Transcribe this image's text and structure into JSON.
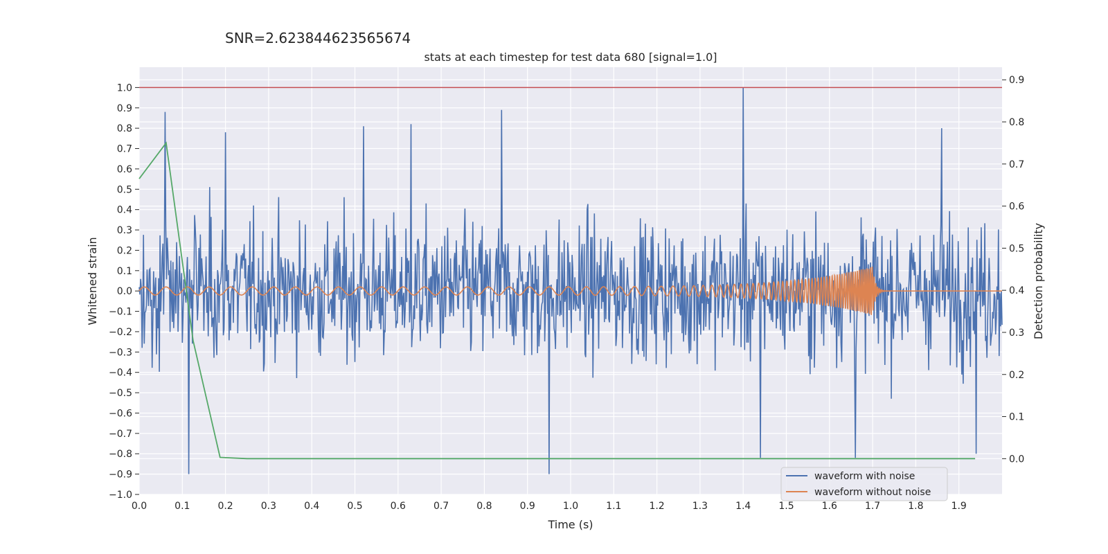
{
  "chart_data": {
    "type": "line",
    "suptitle": "SNR=2.623844623565674",
    "title": "stats at each timestep for test data 680 [signal=1.0]",
    "xlabel": "Time (s)",
    "ylabel": "Whitened strain",
    "y2label": "Detection probability",
    "xlim": [
      0.0,
      2.0
    ],
    "ylim": [
      -1.0,
      1.1
    ],
    "y2lim": [
      -0.085,
      0.93
    ],
    "xticks": [
      "0.0",
      "0.1",
      "0.2",
      "0.3",
      "0.4",
      "0.5",
      "0.6",
      "0.7",
      "0.8",
      "0.9",
      "1.0",
      "1.1",
      "1.2",
      "1.3",
      "1.4",
      "1.5",
      "1.6",
      "1.7",
      "1.8",
      "1.9"
    ],
    "yticks": [
      "1.0",
      "0.9",
      "0.8",
      "0.7",
      "0.6",
      "0.5",
      "0.4",
      "0.3",
      "0.2",
      "0.1",
      "0.0",
      "−0.1",
      "−0.2",
      "−0.3",
      "−0.4",
      "−0.5",
      "−0.6",
      "−0.7",
      "−0.8",
      "−0.9",
      "−1.0"
    ],
    "y2ticks": [
      "0.9",
      "0.8",
      "0.7",
      "0.6",
      "0.5",
      "0.4",
      "0.3",
      "0.2",
      "0.1",
      "0.0"
    ],
    "grid": true,
    "legend_position": "lower-right",
    "series": [
      {
        "name": "waveform with noise",
        "color": "#4c72b0",
        "axis": "left",
        "sample_rate": 2048,
        "duration_s": 2.0,
        "spikes": [
          {
            "x": 0.06,
            "y": 0.88
          },
          {
            "x": 0.115,
            "y": -0.9
          },
          {
            "x": 0.2,
            "y": 0.78
          },
          {
            "x": 0.52,
            "y": 0.81
          },
          {
            "x": 0.63,
            "y": 0.82
          },
          {
            "x": 0.84,
            "y": 0.89
          },
          {
            "x": 0.95,
            "y": -0.9
          },
          {
            "x": 1.4,
            "y": 1.0
          },
          {
            "x": 1.44,
            "y": -0.82
          },
          {
            "x": 1.66,
            "y": -0.82
          },
          {
            "x": 1.86,
            "y": 0.8
          },
          {
            "x": 1.94,
            "y": -0.8
          }
        ]
      },
      {
        "name": "waveform without noise",
        "color": "#dd8452",
        "axis": "left",
        "merger_time_s": 1.7,
        "start_amplitude": 0.02,
        "peak_amplitude": 0.12,
        "start_frequency_hz": 20,
        "peak_frequency_hz": 250
      },
      {
        "name": "detection probability",
        "color": "#55a868",
        "axis": "right",
        "x": [
          0.0,
          0.0625,
          0.125,
          0.1875,
          0.25,
          0.5,
          1.0,
          1.5,
          1.9375
        ],
        "y": [
          0.665,
          0.75,
          0.28,
          0.003,
          0.0,
          0.0,
          0.0,
          0.0,
          0.0
        ]
      },
      {
        "name": "threshold",
        "color": "#c44e52",
        "axis": "left",
        "y_constant": 1.0
      }
    ]
  }
}
